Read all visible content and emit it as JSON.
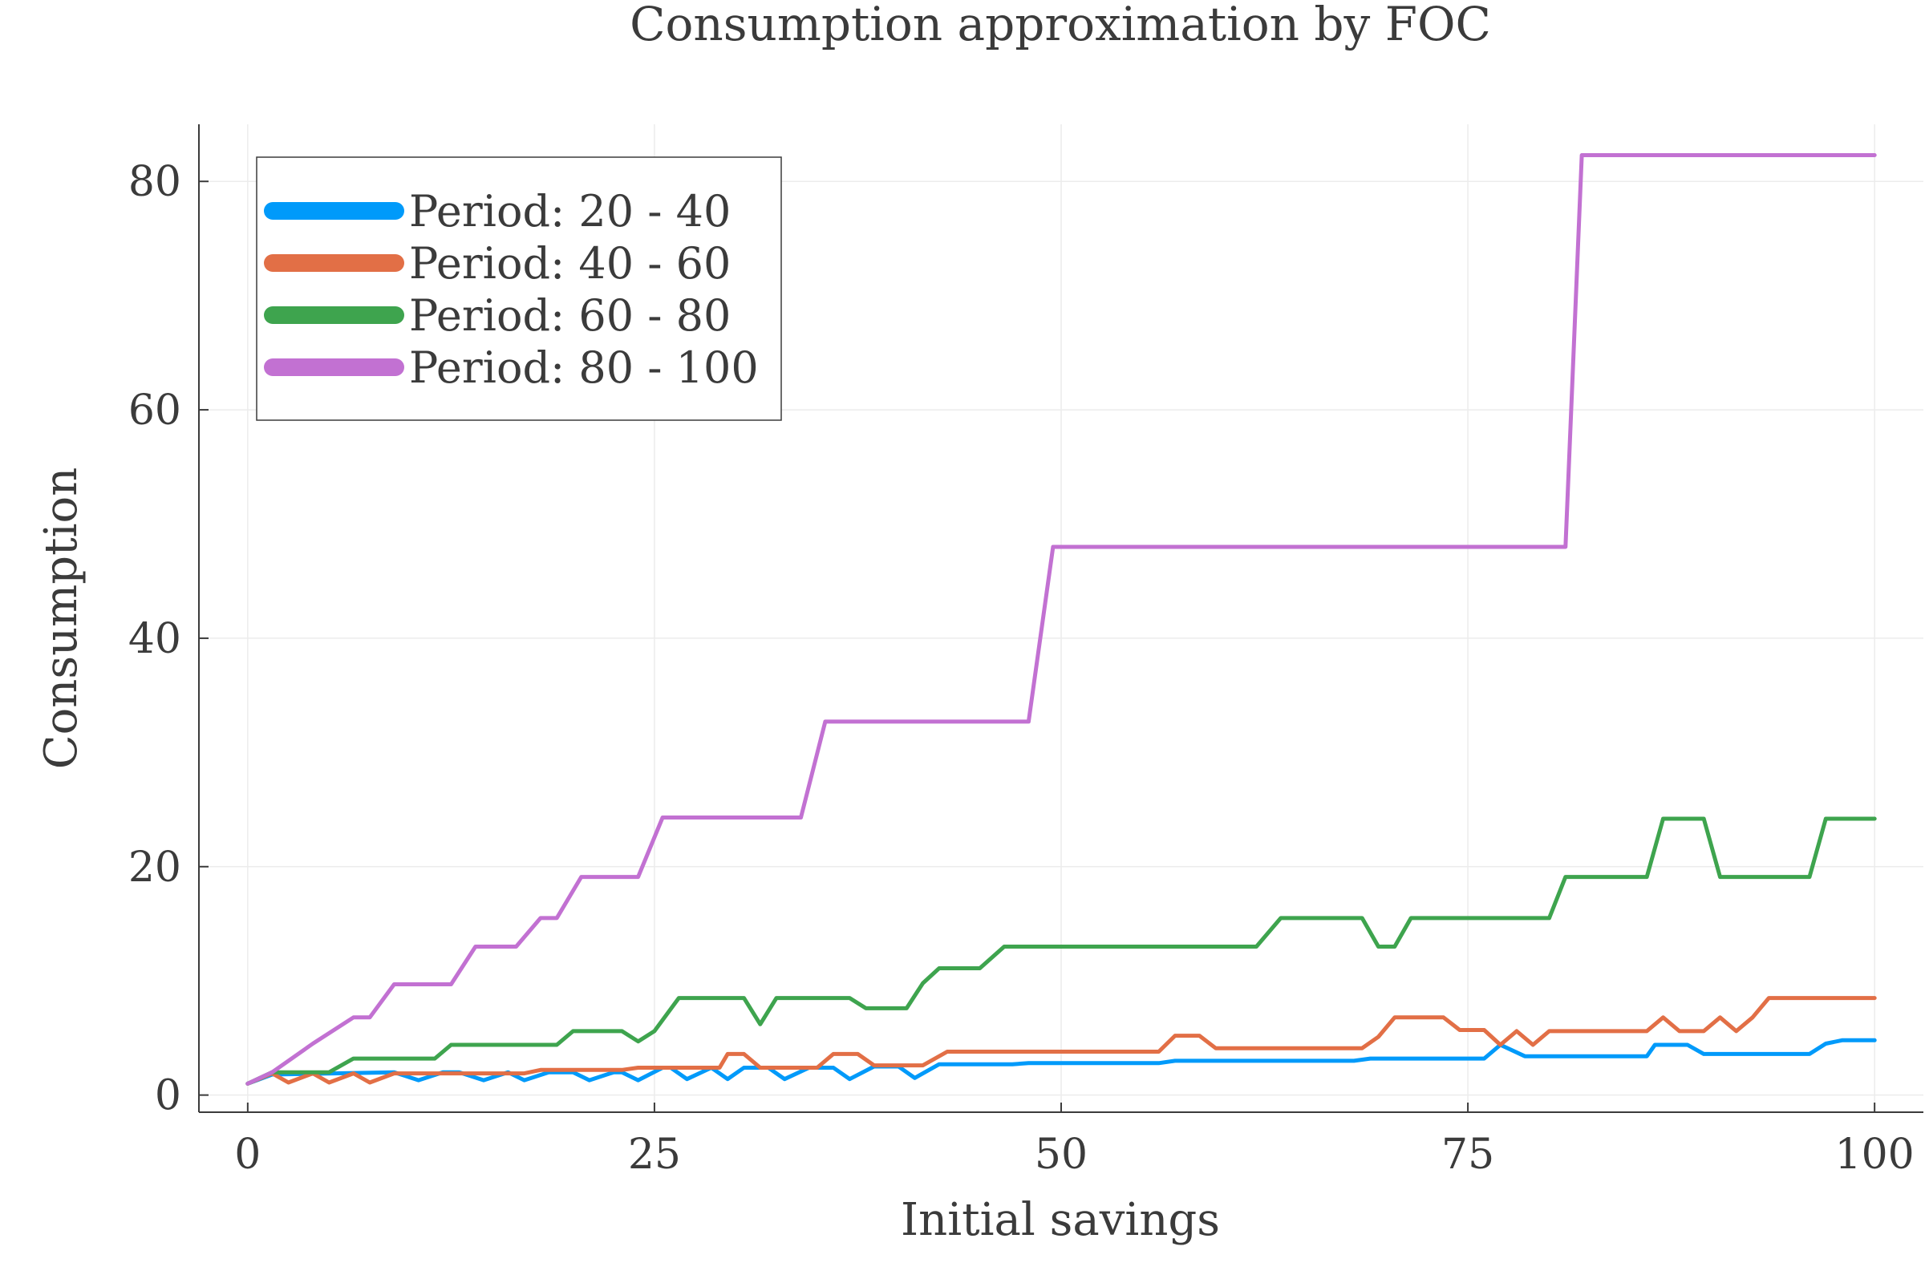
{
  "chart_data": {
    "type": "line",
    "title": "Consumption approximation by FOC",
    "xlabel": "Initial savings",
    "ylabel": "Consumption",
    "xlim": [
      -3,
      103
    ],
    "ylim": [
      -1.5,
      85
    ],
    "xticks": [
      0,
      25,
      50,
      75,
      100
    ],
    "yticks": [
      0,
      20,
      40,
      60,
      80
    ],
    "xtick_labels": [
      "0",
      "25",
      "50",
      "75",
      "100"
    ],
    "ytick_labels": [
      "0",
      "20",
      "40",
      "60",
      "80"
    ],
    "grid": true,
    "legend_position": "top-left",
    "series": [
      {
        "name": "Period: 20 - 40",
        "color": "#009AFA",
        "points": [
          [
            0,
            1
          ],
          [
            1.5,
            1.8
          ],
          [
            9,
            2
          ],
          [
            10.5,
            1.3
          ],
          [
            12,
            2
          ],
          [
            13,
            2
          ],
          [
            14.5,
            1.3
          ],
          [
            16,
            2
          ],
          [
            17,
            1.3
          ],
          [
            18.5,
            2
          ],
          [
            20,
            2
          ],
          [
            21,
            1.3
          ],
          [
            22.5,
            2
          ],
          [
            23,
            2
          ],
          [
            24,
            1.3
          ],
          [
            25.5,
            2.4
          ],
          [
            26,
            2.4
          ],
          [
            27,
            1.4
          ],
          [
            28.5,
            2.4
          ],
          [
            29.5,
            1.4
          ],
          [
            30.5,
            2.4
          ],
          [
            32,
            2.4
          ],
          [
            33,
            1.4
          ],
          [
            34.5,
            2.4
          ],
          [
            36,
            2.4
          ],
          [
            37,
            1.4
          ],
          [
            38.5,
            2.5
          ],
          [
            40,
            2.5
          ],
          [
            41,
            1.5
          ],
          [
            42.5,
            2.7
          ],
          [
            47,
            2.7
          ],
          [
            48,
            2.8
          ],
          [
            56,
            2.8
          ],
          [
            57,
            3.0
          ],
          [
            68,
            3.0
          ],
          [
            69,
            3.2
          ],
          [
            76,
            3.2
          ],
          [
            77,
            4.4
          ],
          [
            78.5,
            3.4
          ],
          [
            86,
            3.4
          ],
          [
            86.5,
            4.4
          ],
          [
            88.5,
            4.4
          ],
          [
            89.5,
            3.6
          ],
          [
            96,
            3.6
          ],
          [
            97,
            4.5
          ],
          [
            98,
            4.8
          ],
          [
            100,
            4.8
          ]
        ]
      },
      {
        "name": "Period: 40 - 60",
        "color": "#E26F46",
        "points": [
          [
            0,
            1
          ],
          [
            1.5,
            1.9
          ],
          [
            2.5,
            1.1
          ],
          [
            4,
            1.9
          ],
          [
            5,
            1.1
          ],
          [
            6.5,
            1.9
          ],
          [
            7.5,
            1.1
          ],
          [
            9,
            1.9
          ],
          [
            13,
            1.9
          ],
          [
            17,
            1.9
          ],
          [
            18,
            2.2
          ],
          [
            23,
            2.2
          ],
          [
            24,
            2.4
          ],
          [
            29,
            2.4
          ],
          [
            29.5,
            3.6
          ],
          [
            30.5,
            3.6
          ],
          [
            31.5,
            2.4
          ],
          [
            35,
            2.4
          ],
          [
            36,
            3.6
          ],
          [
            37.5,
            3.6
          ],
          [
            38.5,
            2.6
          ],
          [
            41.5,
            2.6
          ],
          [
            43,
            3.8
          ],
          [
            56,
            3.8
          ],
          [
            57,
            5.2
          ],
          [
            58.5,
            5.2
          ],
          [
            59.5,
            4.1
          ],
          [
            68.5,
            4.1
          ],
          [
            69.5,
            5.1
          ],
          [
            70.5,
            6.8
          ],
          [
            73.5,
            6.8
          ],
          [
            74.5,
            5.7
          ],
          [
            76,
            5.7
          ],
          [
            77,
            4.4
          ],
          [
            78,
            5.6
          ],
          [
            79,
            4.4
          ],
          [
            80,
            5.6
          ],
          [
            85,
            5.6
          ],
          [
            86,
            5.6
          ],
          [
            87,
            6.8
          ],
          [
            88,
            5.6
          ],
          [
            89.5,
            5.6
          ],
          [
            90.5,
            6.8
          ],
          [
            91.5,
            5.6
          ],
          [
            92.5,
            6.8
          ],
          [
            93.5,
            8.5
          ],
          [
            100,
            8.5
          ]
        ]
      },
      {
        "name": "Period: 60 - 80",
        "color": "#3EA44E",
        "points": [
          [
            0,
            1
          ],
          [
            1.5,
            2
          ],
          [
            5,
            2
          ],
          [
            6.5,
            3.2
          ],
          [
            11.5,
            3.2
          ],
          [
            12.5,
            4.4
          ],
          [
            19,
            4.4
          ],
          [
            20,
            5.6
          ],
          [
            23,
            5.6
          ],
          [
            24,
            4.7
          ],
          [
            25,
            5.6
          ],
          [
            26.5,
            8.5
          ],
          [
            30.5,
            8.5
          ],
          [
            31.5,
            6.2
          ],
          [
            32.5,
            8.5
          ],
          [
            37,
            8.5
          ],
          [
            38,
            7.6
          ],
          [
            40.5,
            7.6
          ],
          [
            41.5,
            9.8
          ],
          [
            42.5,
            11.1
          ],
          [
            45,
            11.1
          ],
          [
            46.5,
            13
          ],
          [
            62,
            13
          ],
          [
            63.5,
            15.5
          ],
          [
            68.5,
            15.5
          ],
          [
            69.5,
            13
          ],
          [
            70.5,
            13
          ],
          [
            71.5,
            15.5
          ],
          [
            80,
            15.5
          ],
          [
            81,
            19.1
          ],
          [
            85,
            19.1
          ],
          [
            86,
            19.1
          ],
          [
            87,
            24.2
          ],
          [
            89.5,
            24.2
          ],
          [
            90.5,
            19.1
          ],
          [
            96,
            19.1
          ],
          [
            97,
            24.2
          ],
          [
            100,
            24.2
          ]
        ]
      },
      {
        "name": "Period: 80 - 100",
        "color": "#C271D2",
        "points": [
          [
            0,
            1
          ],
          [
            1.5,
            2
          ],
          [
            2.5,
            3
          ],
          [
            4,
            4.5
          ],
          [
            6.5,
            6.8
          ],
          [
            7.5,
            6.8
          ],
          [
            9,
            9.7
          ],
          [
            12.5,
            9.7
          ],
          [
            14,
            13
          ],
          [
            16.5,
            13
          ],
          [
            18,
            15.5
          ],
          [
            19,
            15.5
          ],
          [
            20.5,
            19.1
          ],
          [
            24,
            19.1
          ],
          [
            25.5,
            24.3
          ],
          [
            34,
            24.3
          ],
          [
            35.5,
            32.7
          ],
          [
            48,
            32.7
          ],
          [
            49.5,
            48
          ],
          [
            81,
            48
          ],
          [
            82,
            82.3
          ],
          [
            100,
            82.3
          ]
        ]
      }
    ]
  }
}
